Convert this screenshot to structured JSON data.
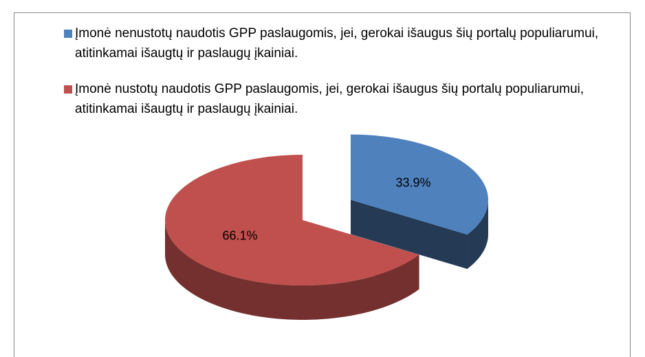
{
  "chart_data": {
    "type": "pie",
    "categories": [
      "Įmonė nenustotų naudotis GPP paslaugomis, jei, gerokai išaugus šių portalų populiarumui, atitinkamai išaugtų ir paslaugų įkainiai.",
      "Įmonė nustotų naudotis GPP paslaugomis, jei, gerokai išaugus šių portalų populiarumui, atitinkamai išaugtų ir paslaugų įkainiai."
    ],
    "values": [
      33.9,
      66.1
    ],
    "value_labels": [
      "33.9%",
      "66.1%"
    ],
    "colors": [
      "#4f81bd",
      "#c0504d"
    ],
    "legend": "top"
  }
}
